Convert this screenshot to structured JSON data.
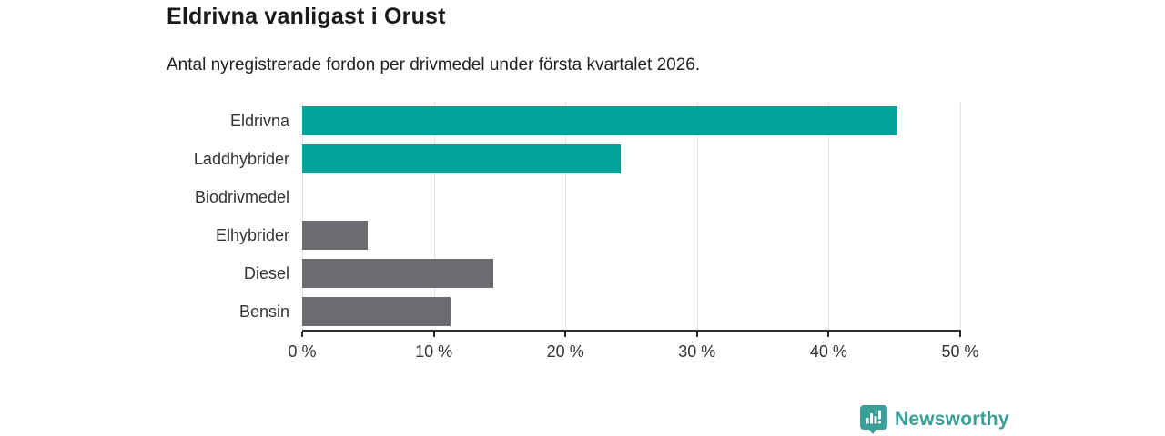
{
  "header": {
    "title": "Eldrivna vanligast i Orust",
    "subtitle": "Antal nyregistrerade fordon per drivmedel under första kvartalet 2026."
  },
  "chart_data": {
    "type": "bar",
    "orientation": "horizontal",
    "title": "Eldrivna vanligast i Orust",
    "subtitle": "Antal nyregistrerade fordon per drivmedel under första kvartalet 2026.",
    "categories": [
      "Eldrivna",
      "Laddhybrider",
      "Biodrivmedel",
      "Elhybrider",
      "Diesel",
      "Bensin"
    ],
    "values": [
      45.2,
      24.2,
      0,
      5.0,
      14.5,
      11.3
    ],
    "unit": "%",
    "bar_colors": [
      "#00a399",
      "#00a399",
      "#6b6b70",
      "#6b6b70",
      "#6b6b70",
      "#6b6b70"
    ],
    "highlight_color": "#00a399",
    "default_color": "#6b6b70",
    "xlim": [
      0,
      50
    ],
    "x_ticks": [
      0,
      10,
      20,
      30,
      40,
      50
    ],
    "x_tick_labels": [
      "0 %",
      "10 %",
      "20 %",
      "30 %",
      "40 %",
      "50 %"
    ],
    "grid": true,
    "gridline_color": "#e4e4e4",
    "axis_color": "#2e2e2e",
    "legend": "none"
  },
  "branding": {
    "logo_text": "Newsworthy",
    "logo_color": "#3b9e98",
    "logo_icon": "bar-chart-bubble-icon"
  }
}
